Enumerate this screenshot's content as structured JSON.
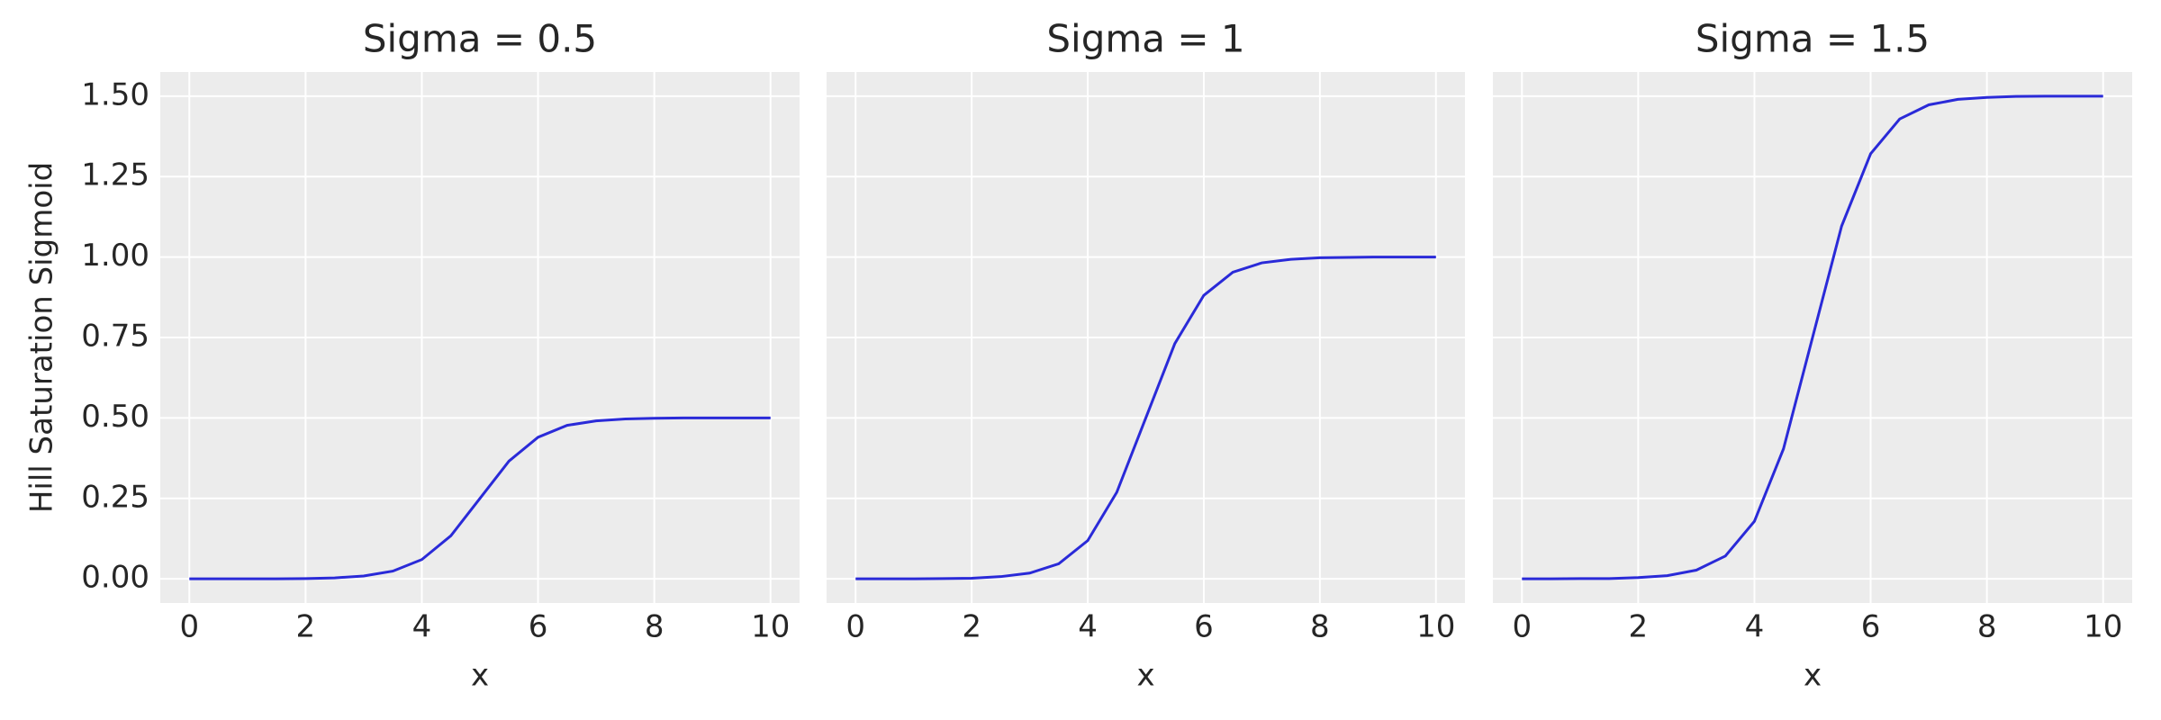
{
  "chart_data": [
    {
      "type": "line",
      "title": "Sigma = 0.5",
      "xlabel": "x",
      "ylabel": "Hill Saturation Sigmoid",
      "color": "#2a2ad8",
      "grid": true,
      "x": [
        0,
        0.5,
        1,
        1.5,
        2,
        2.5,
        3,
        3.5,
        4,
        4.5,
        5,
        5.5,
        6,
        6.5,
        7,
        7.5,
        8,
        8.5,
        9,
        9.5,
        10
      ],
      "values": [
        0,
        0,
        0,
        0,
        0.001,
        0.003,
        0.009,
        0.024,
        0.06,
        0.134,
        0.25,
        0.366,
        0.44,
        0.477,
        0.491,
        0.497,
        0.499,
        0.5,
        0.5,
        0.5,
        0.5
      ],
      "xlim": [
        -0.5,
        10.5
      ],
      "xticks": [
        0,
        2,
        4,
        6,
        8,
        10
      ],
      "ylim": [
        -0.075,
        1.575
      ],
      "yticks": [
        {
          "value": 0,
          "label": "0.00"
        },
        {
          "value": 0.25,
          "label": "0.25"
        },
        {
          "value": 0.5,
          "label": "0.50"
        },
        {
          "value": 0.75,
          "label": "0.75"
        },
        {
          "value": 1,
          "label": "1.00"
        },
        {
          "value": 1.25,
          "label": "1.25"
        },
        {
          "value": 1.5,
          "label": "1.50"
        }
      ]
    },
    {
      "type": "line",
      "title": "Sigma = 1",
      "xlabel": "x",
      "color": "#2a2ad8",
      "grid": true,
      "x": [
        0,
        0.5,
        1,
        1.5,
        2,
        2.5,
        3,
        3.5,
        4,
        4.5,
        5,
        5.5,
        6,
        6.5,
        7,
        7.5,
        8,
        8.5,
        9,
        9.5,
        10
      ],
      "values": [
        0,
        0,
        0,
        0.001,
        0.002,
        0.007,
        0.018,
        0.047,
        0.119,
        0.269,
        0.5,
        0.731,
        0.881,
        0.953,
        0.982,
        0.993,
        0.998,
        0.999,
        1,
        1,
        1
      ],
      "xlim": [
        -0.5,
        10.5
      ],
      "xticks": [
        0,
        2,
        4,
        6,
        8,
        10
      ],
      "ylim": [
        -0.075,
        1.575
      ],
      "yticks": [
        0,
        0.25,
        0.5,
        0.75,
        1,
        1.25,
        1.5
      ]
    },
    {
      "type": "line",
      "title": "Sigma = 1.5",
      "xlabel": "x",
      "color": "#2a2ad8",
      "grid": true,
      "x": [
        0,
        0.5,
        1,
        1.5,
        2,
        2.5,
        3,
        3.5,
        4,
        4.5,
        5,
        5.5,
        6,
        6.5,
        7,
        7.5,
        8,
        8.5,
        9,
        9.5,
        10
      ],
      "values": [
        0,
        0,
        0.001,
        0.001,
        0.004,
        0.01,
        0.027,
        0.071,
        0.179,
        0.404,
        0.75,
        1.096,
        1.321,
        1.429,
        1.473,
        1.49,
        1.496,
        1.499,
        1.5,
        1.5,
        1.5
      ],
      "xlim": [
        -0.5,
        10.5
      ],
      "xticks": [
        0,
        2,
        4,
        6,
        8,
        10
      ],
      "ylim": [
        -0.075,
        1.575
      ],
      "yticks": [
        0,
        0.25,
        0.5,
        0.75,
        1,
        1.25,
        1.5
      ]
    }
  ]
}
